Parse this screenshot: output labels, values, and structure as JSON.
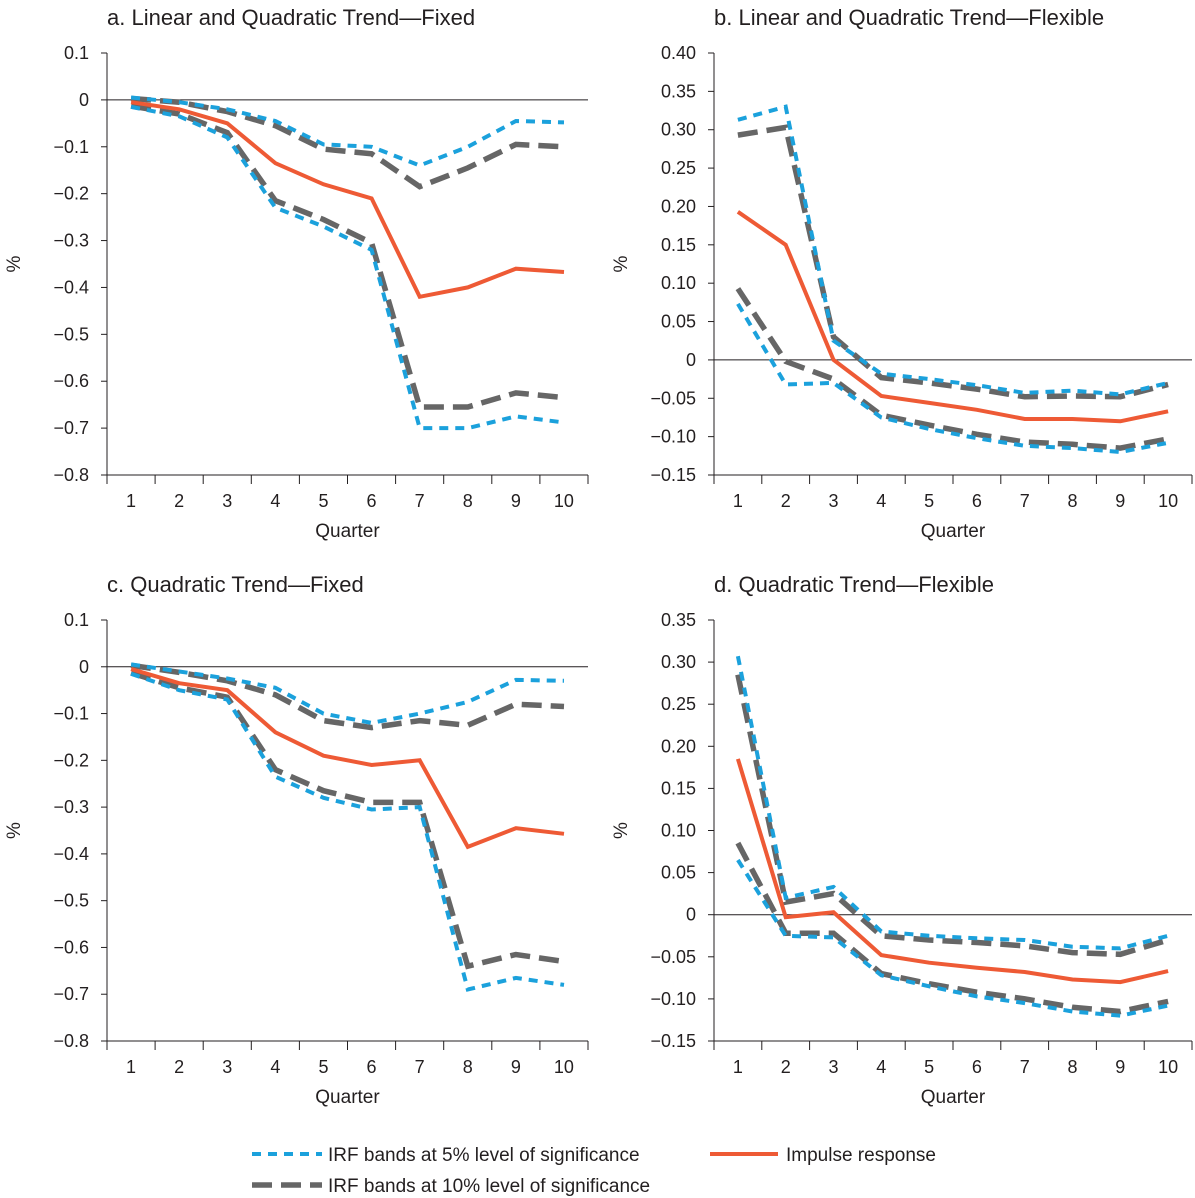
{
  "colors": {
    "band5": "#1ba1dc",
    "band10": "#666666",
    "impulse": "#ee5a35",
    "axis": "#231f20"
  },
  "legend": {
    "band5_label": "IRF bands at 5% level of significance",
    "band10_label": "IRF bands at 10% level of significance",
    "impulse_label": "Impulse response"
  },
  "chart_data": [
    {
      "type": "line",
      "title": "a.  Linear and Quadratic Trend—Fixed",
      "xlabel": "Quarter",
      "ylabel": "%",
      "x": [
        1,
        2,
        3,
        4,
        5,
        6,
        7,
        8,
        9,
        10
      ],
      "ylim": [
        -0.8,
        0.1
      ],
      "yticks": [
        0.1,
        0,
        -0.1,
        -0.2,
        -0.3,
        -0.4,
        -0.5,
        -0.6,
        -0.7,
        -0.8
      ],
      "ytick_labels": [
        "0.1",
        "0",
        "−0.1",
        "−0.2",
        "−0.3",
        "−0.4",
        "−0.5",
        "−0.6",
        "−0.7",
        "−0.8"
      ],
      "series": [
        {
          "name": "IRF bands at 5% level of significance",
          "style": "band5",
          "values": [
            0.005,
            -0.005,
            -0.02,
            -0.045,
            -0.095,
            -0.1,
            -0.14,
            -0.1,
            -0.045,
            -0.048
          ]
        },
        {
          "name": "IRF bands at 5% level of significance",
          "style": "band5",
          "values": [
            -0.015,
            -0.035,
            -0.08,
            -0.23,
            -0.27,
            -0.32,
            -0.7,
            -0.7,
            -0.675,
            -0.688
          ]
        },
        {
          "name": "IRF bands at 10% level of significance",
          "style": "band10",
          "values": [
            0.003,
            -0.005,
            -0.025,
            -0.055,
            -0.105,
            -0.115,
            -0.185,
            -0.145,
            -0.095,
            -0.1
          ]
        },
        {
          "name": "IRF bands at 10% level of significance",
          "style": "band10",
          "values": [
            -0.013,
            -0.03,
            -0.07,
            -0.215,
            -0.255,
            -0.305,
            -0.655,
            -0.655,
            -0.625,
            -0.635
          ]
        },
        {
          "name": "Impulse response",
          "style": "impulse",
          "values": [
            -0.005,
            -0.02,
            -0.05,
            -0.135,
            -0.18,
            -0.21,
            -0.42,
            -0.4,
            -0.36,
            -0.367
          ]
        }
      ]
    },
    {
      "type": "line",
      "title": "b.  Linear and Quadratic Trend—Flexible",
      "xlabel": "Quarter",
      "ylabel": "%",
      "x": [
        1,
        2,
        3,
        4,
        5,
        6,
        7,
        8,
        9,
        10
      ],
      "ylim": [
        -0.15,
        0.4
      ],
      "yticks": [
        0.4,
        0.35,
        0.3,
        0.25,
        0.2,
        0.15,
        0.1,
        0.05,
        0,
        -0.05,
        -0.1,
        -0.15
      ],
      "ytick_labels": [
        "0.40",
        "0.35",
        "0.30",
        "0.25",
        "0.20",
        "0.15",
        "0.10",
        "0.05",
        "0",
        "−0.05",
        "−0.10",
        "−0.15"
      ],
      "series": [
        {
          "name": "IRF bands at 5% level of significance",
          "style": "band5",
          "values": [
            0.313,
            0.33,
            0.025,
            -0.018,
            -0.025,
            -0.033,
            -0.043,
            -0.04,
            -0.045,
            -0.03
          ]
        },
        {
          "name": "IRF bands at 5% level of significance",
          "style": "band5",
          "values": [
            0.073,
            -0.032,
            -0.03,
            -0.075,
            -0.09,
            -0.102,
            -0.112,
            -0.115,
            -0.12,
            -0.108
          ]
        },
        {
          "name": "IRF bands at 10% level of significance",
          "style": "band10",
          "values": [
            0.293,
            0.303,
            0.03,
            -0.023,
            -0.03,
            -0.038,
            -0.048,
            -0.047,
            -0.048,
            -0.032
          ]
        },
        {
          "name": "IRF bands at 10% level of significance",
          "style": "band10",
          "values": [
            0.093,
            -0.002,
            -0.025,
            -0.072,
            -0.085,
            -0.097,
            -0.107,
            -0.11,
            -0.115,
            -0.103
          ]
        },
        {
          "name": "Impulse response",
          "style": "impulse",
          "values": [
            0.193,
            0.15,
            0.0,
            -0.047,
            -0.056,
            -0.065,
            -0.077,
            -0.077,
            -0.08,
            -0.067
          ]
        }
      ]
    },
    {
      "type": "line",
      "title": "c.  Quadratic Trend—Fixed",
      "xlabel": "Quarter",
      "ylabel": "%",
      "x": [
        1,
        2,
        3,
        4,
        5,
        6,
        7,
        8,
        9,
        10
      ],
      "ylim": [
        -0.8,
        0.1
      ],
      "yticks": [
        0.1,
        0,
        -0.1,
        -0.2,
        -0.3,
        -0.4,
        -0.5,
        -0.6,
        -0.7,
        -0.8
      ],
      "ytick_labels": [
        "0.1",
        "0",
        "−0.1",
        "−0.2",
        "−0.3",
        "−0.4",
        "−0.5",
        "−0.6",
        "−0.7",
        "−0.8"
      ],
      "series": [
        {
          "name": "IRF bands at 5% level of significance",
          "style": "band5",
          "values": [
            0.005,
            -0.01,
            -0.025,
            -0.045,
            -0.1,
            -0.12,
            -0.1,
            -0.075,
            -0.028,
            -0.03
          ]
        },
        {
          "name": "IRF bands at 5% level of significance",
          "style": "band5",
          "values": [
            -0.015,
            -0.05,
            -0.07,
            -0.235,
            -0.28,
            -0.305,
            -0.3,
            -0.69,
            -0.665,
            -0.68
          ]
        },
        {
          "name": "IRF bands at 10% level of significance",
          "style": "band10",
          "values": [
            0.003,
            -0.012,
            -0.03,
            -0.06,
            -0.115,
            -0.13,
            -0.115,
            -0.125,
            -0.08,
            -0.085
          ]
        },
        {
          "name": "IRF bands at 10% level of significance",
          "style": "band10",
          "values": [
            -0.013,
            -0.045,
            -0.065,
            -0.22,
            -0.265,
            -0.29,
            -0.29,
            -0.64,
            -0.615,
            -0.63
          ]
        },
        {
          "name": "Impulse response",
          "style": "impulse",
          "values": [
            -0.005,
            -0.035,
            -0.05,
            -0.14,
            -0.19,
            -0.21,
            -0.2,
            -0.385,
            -0.345,
            -0.357
          ]
        }
      ]
    },
    {
      "type": "line",
      "title": "d.  Quadratic Trend—Flexible",
      "xlabel": "Quarter",
      "ylabel": "%",
      "x": [
        1,
        2,
        3,
        4,
        5,
        6,
        7,
        8,
        9,
        10
      ],
      "ylim": [
        -0.15,
        0.35
      ],
      "yticks": [
        0.35,
        0.3,
        0.25,
        0.2,
        0.15,
        0.1,
        0.05,
        0,
        -0.05,
        -0.1,
        -0.15
      ],
      "ytick_labels": [
        "0.35",
        "0.30",
        "0.25",
        "0.20",
        "0.15",
        "0.10",
        "0.05",
        "0",
        "−0.05",
        "−0.10",
        "−0.15"
      ],
      "series": [
        {
          "name": "IRF bands at 5% level of significance",
          "style": "band5",
          "values": [
            0.307,
            0.02,
            0.033,
            -0.02,
            -0.025,
            -0.028,
            -0.03,
            -0.038,
            -0.04,
            -0.025
          ]
        },
        {
          "name": "IRF bands at 5% level of significance",
          "style": "band5",
          "values": [
            0.065,
            -0.025,
            -0.027,
            -0.072,
            -0.085,
            -0.097,
            -0.105,
            -0.115,
            -0.12,
            -0.108
          ]
        },
        {
          "name": "IRF bands at 10% level of significance",
          "style": "band10",
          "values": [
            0.285,
            0.015,
            0.025,
            -0.025,
            -0.03,
            -0.033,
            -0.037,
            -0.045,
            -0.047,
            -0.03
          ]
        },
        {
          "name": "IRF bands at 10% level of significance",
          "style": "band10",
          "values": [
            0.085,
            -0.022,
            -0.022,
            -0.07,
            -0.082,
            -0.092,
            -0.1,
            -0.11,
            -0.115,
            -0.103
          ]
        },
        {
          "name": "Impulse response",
          "style": "impulse",
          "values": [
            0.185,
            -0.003,
            0.003,
            -0.048,
            -0.057,
            -0.063,
            -0.068,
            -0.077,
            -0.08,
            -0.067
          ]
        }
      ]
    }
  ]
}
